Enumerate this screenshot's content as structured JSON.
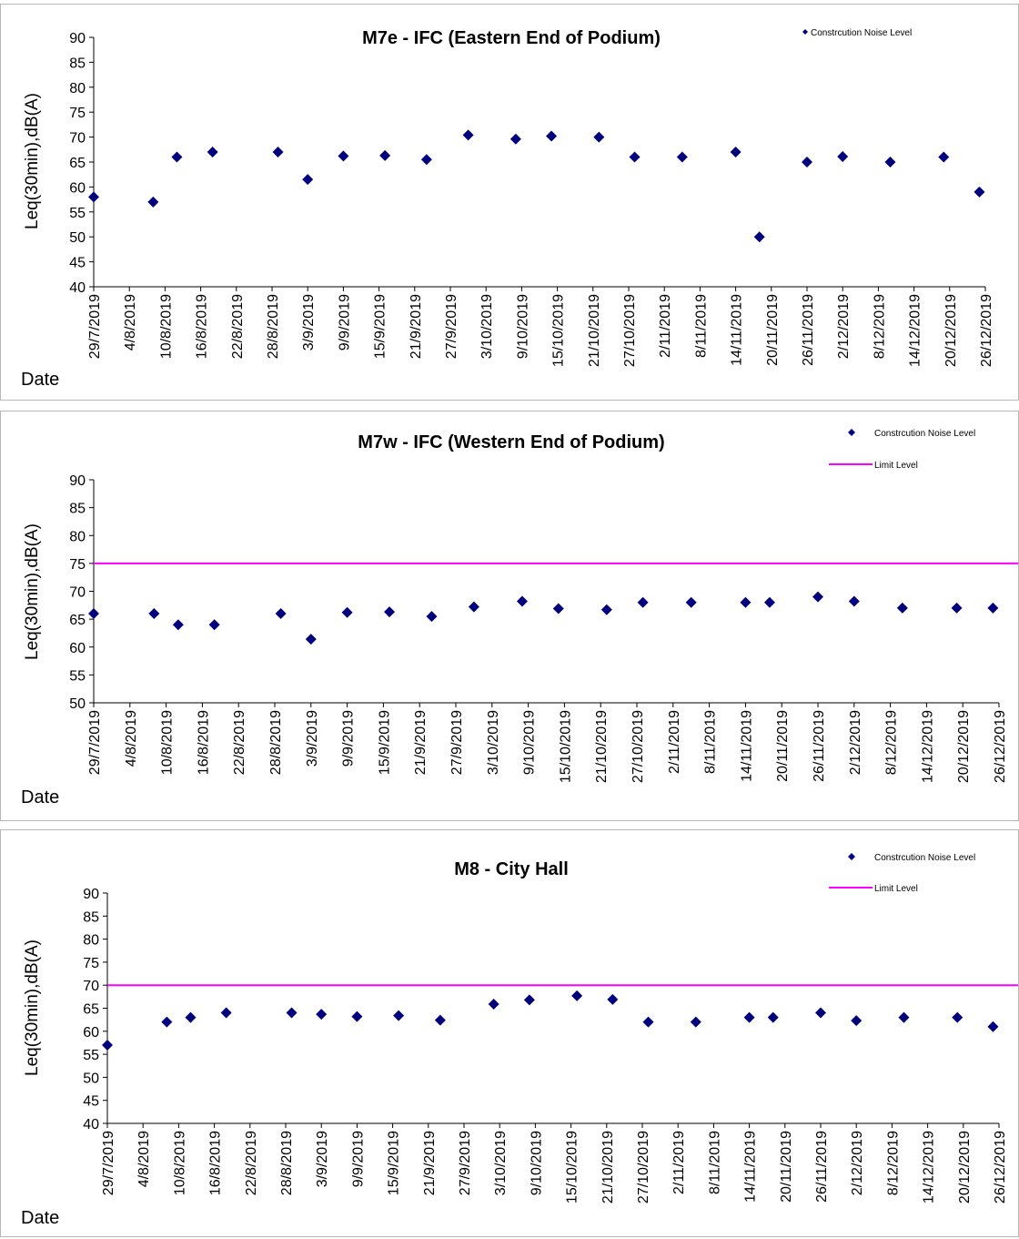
{
  "x_dates": [
    "29/7/2019",
    "4/8/2019",
    "10/8/2019",
    "16/8/2019",
    "22/8/2019",
    "28/8/2019",
    "3/9/2019",
    "9/9/2019",
    "15/9/2019",
    "21/9/2019",
    "27/9/2019",
    "3/10/2019",
    "9/10/2019",
    "15/10/2019",
    "21/10/2019",
    "27/10/2019",
    "2/11/2019",
    "8/11/2019",
    "14/11/2019",
    "20/11/2019",
    "26/11/2019",
    "2/12/2019",
    "8/12/2019",
    "14/12/2019",
    "20/12/2019",
    "26/12/2019"
  ],
  "chart_data": [
    {
      "type": "scatter",
      "title": "M7e - IFC (Eastern End of Podium)",
      "ylabel": "Leq(30min),dB(A)",
      "xlabel": "Date",
      "ylim": [
        40,
        90
      ],
      "yticks": [
        40,
        45,
        50,
        55,
        60,
        65,
        70,
        75,
        80,
        85,
        90
      ],
      "legend_position": "top-right",
      "series": [
        {
          "name": "Constrcution Noise Level",
          "color": "#00007f",
          "points": [
            {
              "x": "29/7/2019",
              "y": 58
            },
            {
              "x": "8/8/2019",
              "y": 57
            },
            {
              "x": "12/8/2019",
              "y": 66
            },
            {
              "x": "18/8/2019",
              "y": 67
            },
            {
              "x": "29/8/2019",
              "y": 67
            },
            {
              "x": "3/9/2019",
              "y": 61.5
            },
            {
              "x": "9/9/2019",
              "y": 66.2
            },
            {
              "x": "16/9/2019",
              "y": 66.3
            },
            {
              "x": "23/9/2019",
              "y": 65.5
            },
            {
              "x": "30/9/2019",
              "y": 70.4
            },
            {
              "x": "8/10/2019",
              "y": 69.6
            },
            {
              "x": "14/10/2019",
              "y": 70.2
            },
            {
              "x": "22/10/2019",
              "y": 70
            },
            {
              "x": "28/10/2019",
              "y": 66
            },
            {
              "x": "5/11/2019",
              "y": 66
            },
            {
              "x": "14/11/2019",
              "y": 67
            },
            {
              "x": "18/11/2019",
              "y": 50
            },
            {
              "x": "26/11/2019",
              "y": 65
            },
            {
              "x": "2/12/2019",
              "y": 66.1
            },
            {
              "x": "10/12/2019",
              "y": 65
            },
            {
              "x": "19/12/2019",
              "y": 66
            },
            {
              "x": "25/12/2019",
              "y": 59
            }
          ]
        }
      ]
    },
    {
      "type": "scatter",
      "title": "M7w - IFC (Western End of Podium)",
      "ylabel": "Leq(30min),dB(A)",
      "xlabel": "Date",
      "ylim": [
        50,
        90
      ],
      "yticks": [
        50,
        55,
        60,
        65,
        70,
        75,
        80,
        85,
        90
      ],
      "legend_position": "top-right",
      "series": [
        {
          "name": "Constrcution Noise Level",
          "color": "#00007f",
          "points": [
            {
              "x": "29/7/2019",
              "y": 66
            },
            {
              "x": "8/8/2019",
              "y": 66
            },
            {
              "x": "12/8/2019",
              "y": 64
            },
            {
              "x": "18/8/2019",
              "y": 64
            },
            {
              "x": "29/8/2019",
              "y": 66
            },
            {
              "x": "3/9/2019",
              "y": 61.4
            },
            {
              "x": "9/9/2019",
              "y": 66.2
            },
            {
              "x": "16/9/2019",
              "y": 66.3
            },
            {
              "x": "23/9/2019",
              "y": 65.5
            },
            {
              "x": "30/9/2019",
              "y": 67.2
            },
            {
              "x": "8/10/2019",
              "y": 68.2
            },
            {
              "x": "14/10/2019",
              "y": 66.9
            },
            {
              "x": "22/10/2019",
              "y": 66.7
            },
            {
              "x": "28/10/2019",
              "y": 68
            },
            {
              "x": "5/11/2019",
              "y": 68
            },
            {
              "x": "14/11/2019",
              "y": 68
            },
            {
              "x": "18/11/2019",
              "y": 68
            },
            {
              "x": "26/11/2019",
              "y": 69
            },
            {
              "x": "2/12/2019",
              "y": 68.2
            },
            {
              "x": "10/12/2019",
              "y": 67
            },
            {
              "x": "19/12/2019",
              "y": 67
            },
            {
              "x": "25/12/2019",
              "y": 67
            }
          ]
        },
        {
          "name": "Limit Level",
          "color": "#ff00ff",
          "type": "line",
          "value": 75
        }
      ]
    },
    {
      "type": "scatter",
      "title": "M8 - City Hall",
      "ylabel": "Leq(30min),dB(A)",
      "xlabel": "Date",
      "ylim": [
        40,
        90
      ],
      "yticks": [
        40,
        45,
        50,
        55,
        60,
        65,
        70,
        75,
        80,
        85,
        90
      ],
      "legend_position": "top-right",
      "series": [
        {
          "name": "Constrcution Noise Level",
          "color": "#00007f",
          "points": [
            {
              "x": "29/7/2019",
              "y": 57
            },
            {
              "x": "8/8/2019",
              "y": 62
            },
            {
              "x": "12/8/2019",
              "y": 63
            },
            {
              "x": "18/8/2019",
              "y": 64
            },
            {
              "x": "29/8/2019",
              "y": 64
            },
            {
              "x": "3/9/2019",
              "y": 63.7
            },
            {
              "x": "9/9/2019",
              "y": 63.2
            },
            {
              "x": "16/9/2019",
              "y": 63.4
            },
            {
              "x": "23/9/2019",
              "y": 62.4
            },
            {
              "x": "2/10/2019",
              "y": 65.9
            },
            {
              "x": "8/10/2019",
              "y": 66.8
            },
            {
              "x": "16/10/2019",
              "y": 67.7
            },
            {
              "x": "22/10/2019",
              "y": 66.9
            },
            {
              "x": "28/10/2019",
              "y": 62
            },
            {
              "x": "5/11/2019",
              "y": 62
            },
            {
              "x": "14/11/2019",
              "y": 63
            },
            {
              "x": "18/11/2019",
              "y": 63
            },
            {
              "x": "26/11/2019",
              "y": 64
            },
            {
              "x": "2/12/2019",
              "y": 62.3
            },
            {
              "x": "10/12/2019",
              "y": 63
            },
            {
              "x": "19/12/2019",
              "y": 63
            },
            {
              "x": "25/12/2019",
              "y": 61
            }
          ]
        },
        {
          "name": "Limit Level",
          "color": "#ff00ff",
          "type": "line",
          "value": 70
        }
      ]
    }
  ]
}
